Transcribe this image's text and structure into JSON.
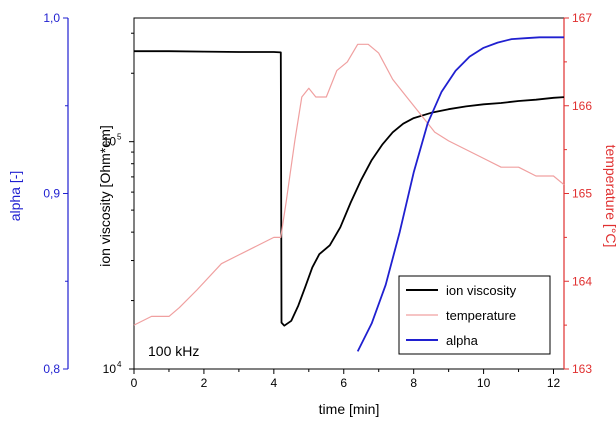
{
  "chart_data": {
    "type": "line",
    "annotation": "100 kHz",
    "x_axis": {
      "label": "time [min]",
      "range": [
        0,
        12.3
      ],
      "ticks": [
        0,
        2,
        4,
        6,
        8,
        10,
        12
      ],
      "tick_labels": [
        "0",
        "2",
        "4",
        "6",
        "8",
        "10",
        "12"
      ]
    },
    "y_axis_left_outer": {
      "label": "alpha [-]",
      "color": "#1f1fd0",
      "range": [
        0.8,
        1.0
      ],
      "ticks": [
        0.8,
        0.9,
        1.0
      ],
      "tick_labels": [
        "0,8",
        "0,9",
        "1,0"
      ]
    },
    "y_axis_left_inner": {
      "label": "ion viscosity [Ohm*cm]",
      "color": "#000000",
      "scale": "log",
      "range": [
        10000,
        350000
      ],
      "ticks": [
        10000,
        100000
      ],
      "tick_labels": [
        {
          "base": "10",
          "exp": "4"
        },
        {
          "base": "10",
          "exp": "5"
        }
      ]
    },
    "y_axis_right": {
      "label": "temperature [°C]",
      "color": "#e03030",
      "range": [
        163,
        167
      ],
      "ticks": [
        163,
        164,
        165,
        166,
        167
      ],
      "tick_labels": [
        "163",
        "164",
        "165",
        "166",
        "167"
      ]
    },
    "legend": {
      "placement": "bottom-right",
      "entries": [
        {
          "label": "ion viscosity",
          "color": "#000000"
        },
        {
          "label": "temperature",
          "color": "#f0a0a0"
        },
        {
          "label": "alpha",
          "color": "#2020d0"
        }
      ]
    },
    "series": [
      {
        "name": "ion viscosity",
        "axis": "y_axis_left_inner",
        "color": "#000000",
        "x": [
          0,
          1,
          2,
          3,
          4,
          4.2,
          4.22,
          4.3,
          4.5,
          4.7,
          4.9,
          5.1,
          5.3,
          5.6,
          5.9,
          6.2,
          6.5,
          6.8,
          7.1,
          7.4,
          7.7,
          8,
          8.5,
          9,
          9.5,
          10,
          10.5,
          11,
          11.5,
          12,
          12.3
        ],
        "y": [
          250000,
          250000,
          249000,
          248000,
          248000,
          247000,
          16000,
          15500,
          16300,
          19000,
          23000,
          28000,
          32000,
          35000,
          42000,
          54000,
          68000,
          83000,
          97000,
          110000,
          120000,
          127000,
          134000,
          139000,
          143000,
          146000,
          148000,
          151000,
          153000,
          156000,
          157000
        ]
      },
      {
        "name": "temperature",
        "axis": "y_axis_right",
        "color": "#f0a0a0",
        "x": [
          0,
          0.5,
          1,
          1.3,
          1.8,
          2.5,
          3,
          3.5,
          4,
          4.2,
          4.35,
          4.6,
          4.8,
          5,
          5.2,
          5.5,
          5.8,
          6.1,
          6.4,
          6.7,
          7,
          7.4,
          7.8,
          8.2,
          8.6,
          9,
          9.5,
          10,
          10.5,
          11,
          11.5,
          12,
          12.3
        ],
        "y": [
          163.5,
          163.6,
          163.6,
          163.7,
          163.9,
          164.2,
          164.3,
          164.4,
          164.5,
          164.5,
          164.9,
          165.6,
          166.1,
          166.2,
          166.1,
          166.1,
          166.4,
          166.5,
          166.7,
          166.7,
          166.6,
          166.3,
          166.1,
          165.9,
          165.7,
          165.6,
          165.5,
          165.4,
          165.3,
          165.3,
          165.2,
          165.2,
          165.1
        ]
      },
      {
        "name": "alpha",
        "axis": "y_axis_left_outer",
        "color": "#2020d0",
        "x": [
          6.4,
          6.8,
          7.2,
          7.6,
          8,
          8.4,
          8.8,
          9.2,
          9.6,
          10,
          10.4,
          10.8,
          11.2,
          11.6,
          12,
          12.3
        ],
        "y": [
          0.81,
          0.826,
          0.848,
          0.878,
          0.912,
          0.94,
          0.958,
          0.97,
          0.978,
          0.983,
          0.986,
          0.988,
          0.9885,
          0.989,
          0.989,
          0.989
        ]
      }
    ]
  }
}
